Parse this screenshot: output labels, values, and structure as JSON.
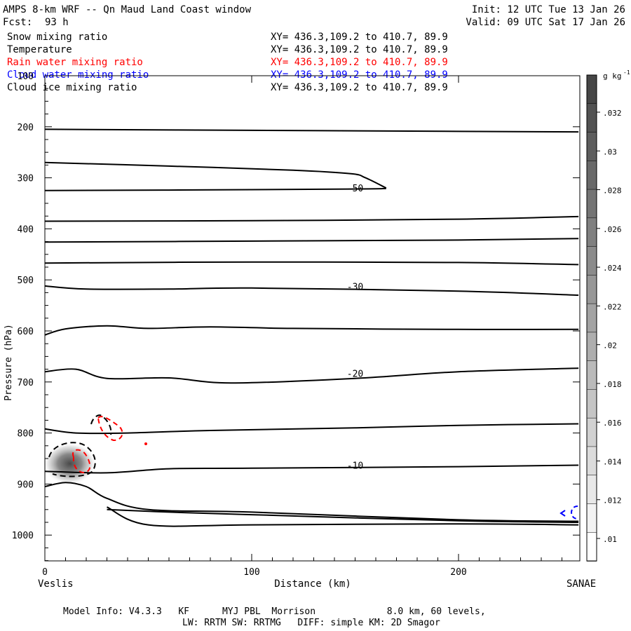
{
  "header": {
    "title": "AMPS 8-km WRF -- Qn Maud Land Coast window",
    "fcst_label": "Fcst:",
    "fcst_value": "93 h",
    "init": "Init: 12 UTC Tue 13 Jan 26",
    "valid": "Valid: 09 UTC Sat 17 Jan 26"
  },
  "fields": [
    {
      "name": "Snow mixing ratio",
      "xy": "XY= 436.3,109.2 to 410.7, 89.9",
      "color": "#000000"
    },
    {
      "name": "Temperature",
      "xy": "XY= 436.3,109.2 to 410.7, 89.9",
      "color": "#000000"
    },
    {
      "name": "Rain water mixing ratio",
      "xy": "XY= 436.3,109.2 to 410.7, 89.9",
      "color": "#ff0000"
    },
    {
      "name": "Cloud water mixing ratio",
      "xy": "XY= 436.3,109.2 to 410.7, 89.9",
      "color": "#0000ff"
    },
    {
      "name": "Cloud ice mixing ratio",
      "xy": "XY= 436.3,109.2 to 410.7, 89.9",
      "color": "#000000"
    }
  ],
  "chart_data": {
    "type": "cross-section contour",
    "ylabel": "Pressure (hPa)",
    "xlabel": "Distance (km)",
    "ylim": [
      1050,
      100
    ],
    "xlim": [
      0,
      258
    ],
    "yticks": [
      100,
      200,
      300,
      400,
      500,
      600,
      700,
      800,
      900,
      1000
    ],
    "xticks": [
      0,
      100,
      200
    ],
    "x_left_label": "Veslis",
    "x_right_label": "SANAE",
    "contour_labels": [
      {
        "text": "-50",
        "x": 150,
        "p": 320
      },
      {
        "text": "-30",
        "x": 150,
        "p": 513
      },
      {
        "text": "-20",
        "x": 150,
        "p": 683
      },
      {
        "text": "-10",
        "x": 150,
        "p": 863
      }
    ],
    "temperature_isotherms": [
      [
        [
          0,
          205
        ],
        [
          100,
          207
        ],
        [
          200,
          209
        ],
        [
          258,
          210
        ]
      ],
      [
        [
          0,
          270
        ],
        [
          60,
          277
        ],
        [
          120,
          285
        ],
        [
          148,
          292
        ],
        [
          155,
          300
        ],
        [
          165,
          320
        ]
      ],
      [
        [
          0,
          325
        ],
        [
          60,
          324
        ],
        [
          148,
          322
        ],
        [
          165,
          321
        ]
      ],
      [
        [
          0,
          385
        ],
        [
          100,
          384
        ],
        [
          200,
          381
        ],
        [
          258,
          376
        ]
      ],
      [
        [
          0,
          426
        ],
        [
          100,
          424
        ],
        [
          200,
          422
        ],
        [
          258,
          419
        ]
      ],
      [
        [
          0,
          467
        ],
        [
          100,
          465
        ],
        [
          200,
          466
        ],
        [
          258,
          470
        ]
      ],
      [
        [
          0,
          512
        ],
        [
          20,
          518
        ],
        [
          60,
          518
        ],
        [
          100,
          516
        ],
        [
          200,
          522
        ],
        [
          258,
          530
        ]
      ],
      [
        [
          0,
          608
        ],
        [
          10,
          596
        ],
        [
          30,
          590
        ],
        [
          50,
          595
        ],
        [
          80,
          592
        ],
        [
          120,
          595
        ],
        [
          200,
          597
        ],
        [
          258,
          597
        ]
      ],
      [
        [
          0,
          680
        ],
        [
          15,
          675
        ],
        [
          30,
          693
        ],
        [
          60,
          692
        ],
        [
          90,
          702
        ],
        [
          150,
          693
        ],
        [
          200,
          680
        ],
        [
          258,
          673
        ]
      ],
      [
        [
          0,
          792
        ],
        [
          15,
          800
        ],
        [
          40,
          800
        ],
        [
          80,
          795
        ],
        [
          150,
          790
        ],
        [
          200,
          785
        ],
        [
          258,
          782
        ]
      ],
      [
        [
          0,
          875
        ],
        [
          30,
          878
        ],
        [
          60,
          870
        ],
        [
          100,
          869
        ],
        [
          200,
          866
        ],
        [
          258,
          863
        ]
      ],
      [
        [
          0,
          905
        ],
        [
          10,
          897
        ],
        [
          20,
          905
        ],
        [
          30,
          928
        ],
        [
          50,
          950
        ],
        [
          100,
          955
        ],
        [
          200,
          970
        ],
        [
          258,
          973
        ]
      ],
      [
        [
          30,
          950
        ],
        [
          60,
          955
        ],
        [
          100,
          960
        ],
        [
          200,
          972
        ],
        [
          258,
          975
        ]
      ],
      [
        [
          30,
          945
        ],
        [
          50,
          980
        ],
        [
          100,
          980
        ],
        [
          200,
          978
        ],
        [
          258,
          980
        ]
      ]
    ],
    "colorbar": {
      "units": "g kg",
      "units_exp": "-1",
      "labels": [
        ".032",
        ".03",
        ".028",
        ".026",
        ".024",
        ".022",
        ".02",
        ".018",
        ".016",
        ".014",
        ".012",
        ".01"
      ],
      "n_bins": 17
    },
    "shaded_max": {
      "x": 12,
      "p": 860,
      "value_g_kg": 0.02
    }
  },
  "footer": {
    "line1": "Model Info: V4.3.3   KF      MYJ PBL  Morrison             8.0 km, 60 levels,",
    "line2": "LW: RRTM SW: RRTMG   DIFF: simple KM: 2D Smagor"
  }
}
